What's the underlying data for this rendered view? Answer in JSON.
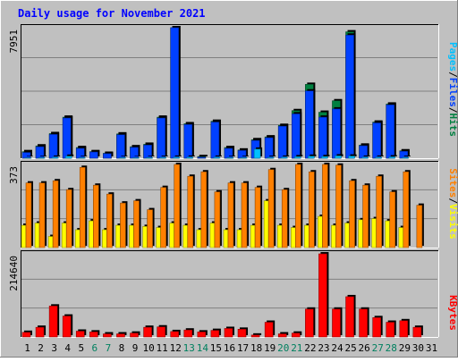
{
  "chart_data": [
    {
      "type": "bar",
      "title": "Daily usage for November 2021",
      "categories": [
        "1",
        "2",
        "3",
        "4",
        "5",
        "6",
        "7",
        "8",
        "9",
        "10",
        "11",
        "12",
        "13",
        "14",
        "15",
        "16",
        "17",
        "18",
        "19",
        "20",
        "21",
        "22",
        "23",
        "24",
        "25",
        "26",
        "27",
        "28",
        "29",
        "30",
        "31"
      ],
      "weekend_days": [
        "6",
        "7",
        "13",
        "14",
        "20",
        "21",
        "27",
        "28"
      ],
      "max_label": "7951",
      "ymax": 7951,
      "legend": [
        "Pages",
        "/",
        "Files",
        "/",
        "Hits"
      ],
      "series": [
        {
          "name": "Hits",
          "color": "#008040",
          "values": [
            400,
            750,
            1500,
            2500,
            650,
            400,
            300,
            1480,
            700,
            850,
            2500,
            7951,
            2100,
            100,
            2250,
            650,
            500,
            1130,
            1300,
            2000,
            2900,
            4500,
            2800,
            3500,
            7700,
            800,
            2200,
            3300,
            450,
            0,
            0
          ]
        },
        {
          "name": "Files",
          "color": "#0040ff",
          "values": [
            350,
            700,
            1450,
            2450,
            600,
            380,
            280,
            1430,
            660,
            800,
            2450,
            7951,
            2050,
            60,
            2200,
            600,
            470,
            1080,
            1250,
            1950,
            2700,
            4100,
            2500,
            3000,
            7500,
            760,
            2150,
            3250,
            420,
            0,
            0
          ]
        },
        {
          "name": "Pages",
          "color": "#00c0ff",
          "values": [
            30,
            40,
            60,
            120,
            40,
            20,
            20,
            40,
            30,
            40,
            50,
            60,
            60,
            5,
            60,
            40,
            40,
            550,
            50,
            60,
            90,
            120,
            100,
            140,
            130,
            60,
            60,
            80,
            50,
            0,
            0
          ]
        }
      ]
    },
    {
      "type": "bar",
      "max_label": "373",
      "ymax": 373,
      "legend": [
        "Sites",
        "/",
        "Visits"
      ],
      "series": [
        {
          "name": "Visits",
          "color": "#ffff00",
          "values": [
            100,
            110,
            50,
            110,
            80,
            120,
            80,
            100,
            100,
            95,
            90,
            110,
            100,
            80,
            110,
            80,
            80,
            100,
            210,
            100,
            90,
            100,
            140,
            100,
            110,
            125,
            130,
            120,
            90,
            0,
            0
          ]
        },
        {
          "name": "Sites",
          "color": "#ff8000",
          "values": [
            290,
            290,
            300,
            260,
            360,
            280,
            240,
            200,
            210,
            170,
            270,
            373,
            320,
            340,
            250,
            290,
            290,
            270,
            350,
            260,
            373,
            340,
            373,
            370,
            300,
            280,
            320,
            250,
            340,
            190,
            0
          ]
        }
      ]
    },
    {
      "type": "bar",
      "max_label": "214640",
      "ymax": 214640,
      "legend": [
        "KBytes"
      ],
      "series": [
        {
          "name": "KBytes",
          "color": "#ff0000",
          "values": [
            12000,
            25000,
            80000,
            54000,
            15000,
            13000,
            8000,
            8000,
            10000,
            25000,
            26000,
            14000,
            18000,
            13000,
            17000,
            22000,
            20000,
            5000,
            38000,
            8000,
            10000,
            72000,
            214640,
            72000,
            104000,
            72000,
            50000,
            38000,
            42000,
            25000,
            0
          ]
        }
      ]
    }
  ]
}
